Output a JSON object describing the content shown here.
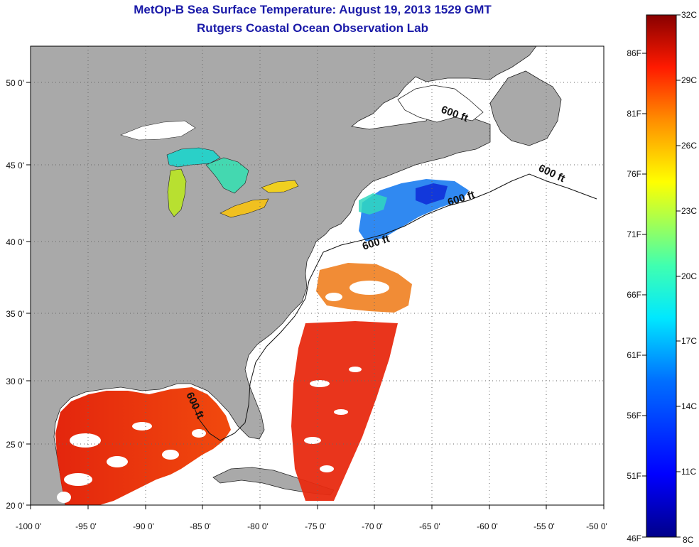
{
  "header": {
    "title": "MetOp-B Sea Surface Temperature:  August 19, 2013 1529 GMT",
    "subtitle": "Rutgers Coastal Ocean Observation Lab"
  },
  "map": {
    "x_axis": {
      "min": -100,
      "max": -50,
      "ticks": [
        "-100 0'",
        "-95 0'",
        "-90 0'",
        "-85 0'",
        "-80 0'",
        "-75 0'",
        "-70 0'",
        "-65 0'",
        "-60 0'",
        "-55 0'",
        "-50 0'"
      ]
    },
    "y_axis": {
      "min": 20,
      "max": 52.6,
      "ticks": [
        "20 0'",
        "25 0'",
        "30 0'",
        "35 0'",
        "40 0'",
        "45 0'",
        "50 0'"
      ]
    },
    "contour_labels": [
      "600 ft",
      "600 ft",
      "600 ft",
      "600 ft",
      "600 ft"
    ],
    "colors": {
      "land": "#a9a9a9",
      "ocean_no_data": "#ffffff",
      "grid": "#666666"
    }
  },
  "colorbar": {
    "celsius_labels": [
      "32C",
      "29C",
      "26C",
      "23C",
      "20C",
      "17C",
      "14C",
      "11C",
      "8C"
    ],
    "fahrenheit_labels": [
      "86F",
      "81F",
      "76F",
      "71F",
      "66F",
      "61F",
      "56F",
      "51F",
      "46F"
    ],
    "range_c": [
      8,
      32
    ],
    "colors": [
      "#000080",
      "#0000ff",
      "#0080ff",
      "#00ffff",
      "#80ff80",
      "#ffff00",
      "#ff8000",
      "#ff0000",
      "#800000"
    ]
  }
}
